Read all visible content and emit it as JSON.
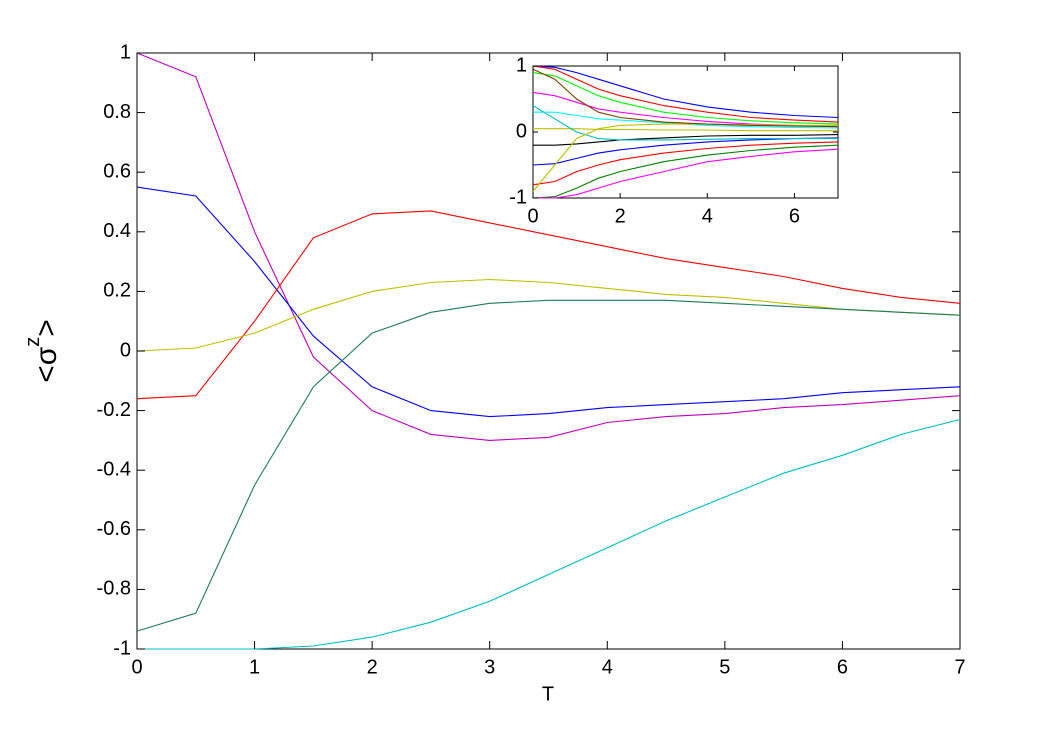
{
  "chart_data": [
    {
      "type": "line",
      "xlabel": "T",
      "ylabel": {
        "base": "<σ",
        "sup": "z",
        "end": ">"
      },
      "xlim": [
        0,
        7
      ],
      "xticks": [
        0,
        1,
        2,
        3,
        4,
        5,
        6,
        7
      ],
      "ylim": [
        -1,
        1
      ],
      "yticks": [
        -1,
        -0.8,
        -0.6,
        -0.4,
        -0.2,
        0,
        0.2,
        0.4,
        0.6,
        0.8,
        1
      ],
      "x": [
        0,
        0.5,
        1,
        1.5,
        2,
        2.5,
        3,
        3.5,
        4,
        4.5,
        5,
        5.5,
        6,
        6.5,
        7
      ],
      "series": [
        {
          "color": "#bf00bf",
          "values": [
            1,
            0.92,
            0.4,
            -0.02,
            -0.2,
            -0.28,
            -0.3,
            -0.29,
            -0.24,
            -0.22,
            -0.21,
            -0.19,
            -0.18,
            -0.165,
            -0.15
          ]
        },
        {
          "color": "#0000ff",
          "values": [
            0.55,
            0.52,
            0.3,
            0.05,
            -0.12,
            -0.2,
            -0.22,
            -0.21,
            -0.19,
            -0.18,
            -0.17,
            -0.16,
            -0.14,
            -0.13,
            -0.12
          ]
        },
        {
          "color": "#ff0000",
          "values": [
            -0.16,
            -0.15,
            0.1,
            0.38,
            0.46,
            0.47,
            0.43,
            0.39,
            0.35,
            0.31,
            0.28,
            0.25,
            0.21,
            0.18,
            0.16
          ]
        },
        {
          "color": "#bfbf00",
          "values": [
            0,
            0.01,
            0.06,
            0.14,
            0.2,
            0.23,
            0.24,
            0.23,
            0.21,
            0.19,
            0.18,
            0.16,
            0.14,
            0.13,
            0.12
          ]
        },
        {
          "color": "#1f7a5a",
          "values": [
            -0.94,
            -0.88,
            -0.45,
            -0.12,
            0.06,
            0.13,
            0.16,
            0.17,
            0.17,
            0.17,
            0.16,
            0.15,
            0.14,
            0.13,
            0.12
          ]
        },
        {
          "color": "#00bfbf",
          "values": [
            -1,
            -1,
            -1,
            -0.99,
            -0.96,
            -0.91,
            -0.84,
            -0.75,
            -0.66,
            -0.57,
            -0.49,
            -0.41,
            -0.35,
            -0.28,
            -0.23
          ]
        }
      ]
    },
    {
      "type": "line",
      "xlim": [
        0,
        7
      ],
      "xticks": [
        0,
        2,
        4,
        6
      ],
      "ylim": [
        -1,
        1
      ],
      "yticks": [
        -1,
        0,
        1
      ],
      "x": [
        0,
        0.5,
        1,
        1.5,
        2,
        3,
        4,
        5,
        6,
        7
      ],
      "series": [
        {
          "color": "#0000ff",
          "values": [
            1,
            0.98,
            0.9,
            0.8,
            0.7,
            0.5,
            0.38,
            0.3,
            0.25,
            0.22
          ]
        },
        {
          "color": "#ff0000",
          "values": [
            1,
            0.95,
            0.8,
            0.65,
            0.55,
            0.4,
            0.3,
            0.22,
            0.18,
            0.15
          ]
        },
        {
          "color": "#00ff00",
          "values": [
            0.9,
            0.85,
            0.7,
            0.55,
            0.45,
            0.3,
            0.22,
            0.17,
            0.14,
            0.12
          ]
        },
        {
          "color": "#ff00ff",
          "values": [
            0.6,
            0.55,
            0.45,
            0.35,
            0.3,
            0.22,
            0.16,
            0.12,
            0.1,
            0.08
          ]
        },
        {
          "color": "#00ffff",
          "values": [
            0.3,
            0.3,
            0.25,
            0.2,
            0.18,
            0.14,
            0.1,
            0.08,
            0.07,
            0.06
          ]
        },
        {
          "color": "#bfbf00",
          "values": [
            0.05,
            0.05,
            0.05,
            0.04,
            0.04,
            0.03,
            0.03,
            0.02,
            0.02,
            0.02
          ]
        },
        {
          "color": "#000000",
          "values": [
            -0.2,
            -0.2,
            -0.18,
            -0.15,
            -0.12,
            -0.09,
            -0.06,
            -0.05,
            -0.05,
            -0.04
          ]
        },
        {
          "color": "#0000ff",
          "values": [
            -0.5,
            -0.48,
            -0.4,
            -0.32,
            -0.27,
            -0.2,
            -0.15,
            -0.12,
            -0.1,
            -0.09
          ]
        },
        {
          "color": "#ff0000",
          "values": [
            -0.8,
            -0.75,
            -0.6,
            -0.5,
            -0.42,
            -0.32,
            -0.25,
            -0.2,
            -0.17,
            -0.15
          ]
        },
        {
          "color": "#008000",
          "values": [
            -1,
            -0.98,
            -0.85,
            -0.7,
            -0.6,
            -0.45,
            -0.35,
            -0.28,
            -0.23,
            -0.2
          ]
        },
        {
          "color": "#ff00ff",
          "values": [
            -1,
            -1,
            -0.95,
            -0.85,
            -0.75,
            -0.6,
            -0.45,
            -0.37,
            -0.3,
            -0.26
          ]
        },
        {
          "color": "#00bfbf",
          "values": [
            0.4,
            0.2,
            0,
            -0.1,
            -0.12,
            -0.12,
            -0.11,
            -0.1,
            -0.1,
            -0.1
          ]
        },
        {
          "color": "#bfbf00",
          "values": [
            -0.9,
            -0.5,
            -0.1,
            0.05,
            0.1,
            0.12,
            0.12,
            0.11,
            0.1,
            0.1
          ]
        },
        {
          "color": "#804000",
          "values": [
            0.95,
            0.8,
            0.5,
            0.3,
            0.22,
            0.15,
            0.12,
            0.1,
            0.09,
            0.08
          ]
        }
      ]
    }
  ]
}
